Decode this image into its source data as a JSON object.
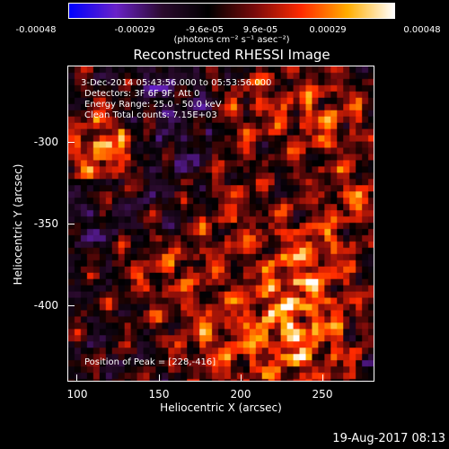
{
  "colorbar": {
    "ticks": [
      "-0.00048",
      "-0.00029",
      "-9.6e-05",
      "9.6e-05",
      "0.00029",
      "0.00048"
    ],
    "unit": "(photons cm⁻² s⁻¹ asec⁻²)",
    "colors": [
      "#0000ff",
      "#6a22c8",
      "#2b0a2e",
      "#000000",
      "#7a0b0b",
      "#ff2a00",
      "#ffae00",
      "#ffffff"
    ]
  },
  "plot": {
    "title": "Reconstructed RHESSI Image",
    "annotations": {
      "date": "3-Dec-2014 05:43:56.000 to 05:53:56.000",
      "detectors": "Detectors: 3F 6F 9F, Att 0",
      "energy": "Energy Range: 25.0 - 50.0 keV",
      "clean": "Clean     Total counts: 7.15E+03",
      "peak": "Position of Peak = [228,-416]"
    },
    "x_axis": {
      "label": "Heliocentric X (arcsec)",
      "ticks": [
        "100",
        "150",
        "200",
        "250"
      ]
    },
    "y_axis": {
      "label": "Heliocentric Y (arcsec)",
      "ticks": [
        "-300",
        "-350",
        "-400"
      ]
    }
  },
  "footer": {
    "date": "19-Aug-2017 08:13"
  }
}
